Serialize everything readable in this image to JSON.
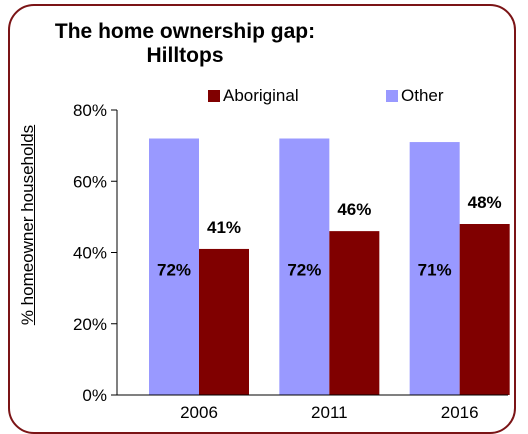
{
  "chart_data": {
    "type": "bar",
    "title": "The home ownership gap: Hilltops",
    "title_lines": [
      "The home ownership gap:",
      "Hilltops"
    ],
    "ylabel": "% homeowner households",
    "xlabel": "",
    "categories": [
      "2006",
      "2011",
      "2016"
    ],
    "series": [
      {
        "name": "Other",
        "values": [
          72,
          72,
          71
        ],
        "labels": [
          "72%",
          "72%",
          "71%"
        ],
        "color": "#9999ff"
      },
      {
        "name": "Aboriginal",
        "values": [
          41,
          46,
          48
        ],
        "labels": [
          "41%",
          "46%",
          "48%"
        ],
        "color": "#800000"
      }
    ],
    "ylim": [
      0,
      80
    ],
    "yticks": [
      0,
      20,
      40,
      60,
      80
    ],
    "ytick_labels": [
      "0%",
      "20%",
      "40%",
      "60%",
      "80%"
    ],
    "legend": {
      "placement": "top-right",
      "order": [
        "Aboriginal",
        "Other"
      ]
    },
    "grid": false
  }
}
